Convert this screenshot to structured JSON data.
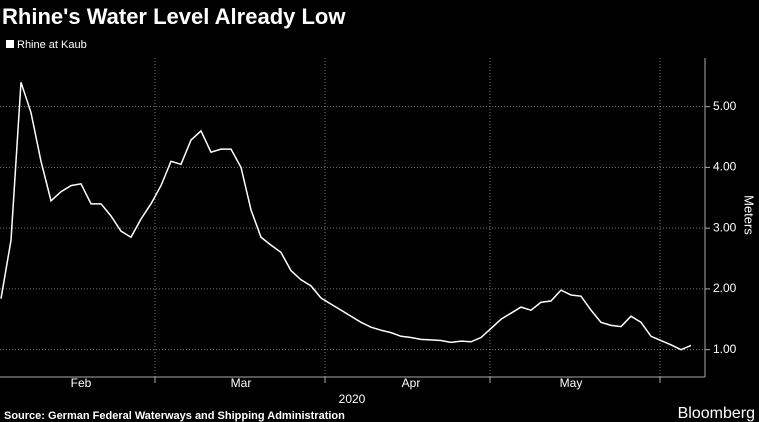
{
  "chart_data": {
    "type": "line",
    "title": "Rhine's Water Level Already Low",
    "y_label": "Meters",
    "x_sublabel": "2020",
    "source": "Source: German Federal Waterways and Shipping Administration",
    "brand": "Bloomberg",
    "legend": "top-left",
    "grid": true,
    "categories": [
      null,
      null,
      null,
      null,
      null,
      null,
      null,
      null,
      "Feb",
      null,
      null,
      null,
      null,
      null,
      null,
      null,
      null,
      null,
      null,
      null,
      null,
      null,
      null,
      null,
      "Mar",
      null,
      null,
      null,
      null,
      null,
      null,
      null,
      null,
      null,
      null,
      null,
      null,
      null,
      null,
      null,
      null,
      "Apr",
      null,
      null,
      null,
      null,
      null,
      null,
      null,
      null,
      null,
      null,
      null,
      null,
      null,
      null,
      null,
      "May",
      null,
      null,
      null,
      null,
      null,
      null,
      null,
      null,
      null,
      null,
      null,
      null
    ],
    "series": [
      {
        "name": "Rhine at Kaub",
        "color": "#ffffff",
        "values": [
          1.84,
          2.8,
          5.4,
          4.9,
          4.1,
          3.45,
          3.6,
          3.7,
          3.73,
          3.4,
          3.4,
          3.2,
          2.95,
          2.85,
          3.15,
          3.4,
          3.7,
          4.1,
          4.05,
          4.45,
          4.6,
          4.25,
          4.3,
          4.3,
          4.0,
          3.3,
          2.85,
          2.72,
          2.6,
          2.3,
          2.15,
          2.05,
          1.85,
          1.75,
          1.65,
          1.55,
          1.45,
          1.37,
          1.32,
          1.28,
          1.22,
          1.2,
          1.17,
          1.16,
          1.15,
          1.12,
          1.14,
          1.13,
          1.2,
          1.35,
          1.5,
          1.6,
          1.7,
          1.65,
          1.78,
          1.8,
          1.98,
          1.9,
          1.88,
          1.65,
          1.45,
          1.4,
          1.38,
          1.55,
          1.45,
          1.22,
          1.15,
          1.08,
          1.0,
          1.07
        ]
      }
    ],
    "ylim": [
      0.55,
      5.8
    ],
    "yticks": [
      {
        "value": 1,
        "label": "1.00"
      },
      {
        "value": 2,
        "label": "2.00"
      },
      {
        "value": 3,
        "label": "3.00"
      },
      {
        "value": 4,
        "label": "4.00"
      },
      {
        "value": 5,
        "label": "5.00"
      }
    ]
  }
}
